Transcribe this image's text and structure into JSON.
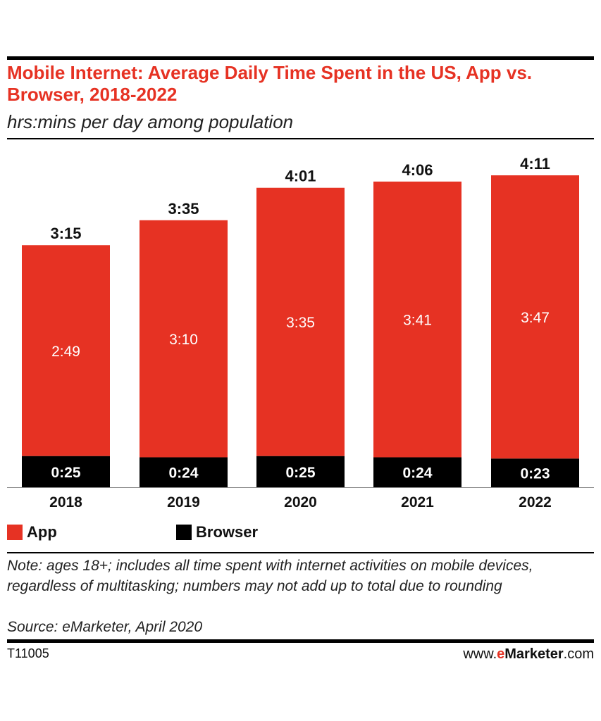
{
  "header": {
    "title": "Mobile Internet: Average Daily Time Spent in the US, App vs. Browser, 2018-2022",
    "subtitle": "hrs:mins per day among population"
  },
  "colors": {
    "app": "#e63223",
    "browser": "#000000",
    "title": "#e63223"
  },
  "legend": {
    "app_label": "App",
    "browser_label": "Browser"
  },
  "chart_data": {
    "type": "bar",
    "stacked": true,
    "categories": [
      "2018",
      "2019",
      "2020",
      "2021",
      "2022"
    ],
    "series": [
      {
        "name": "Browser",
        "values": [
          25,
          24,
          25,
          24,
          23
        ],
        "labels": [
          "0:25",
          "0:24",
          "0:25",
          "0:24",
          "0:23"
        ]
      },
      {
        "name": "App",
        "values": [
          169,
          190,
          215,
          221,
          227
        ],
        "labels": [
          "2:49",
          "3:10",
          "3:35",
          "3:41",
          "3:47"
        ]
      }
    ],
    "totals": [
      195,
      215,
      241,
      246,
      251
    ],
    "total_labels": [
      "3:15",
      "3:35",
      "4:01",
      "4:06",
      "4:11"
    ],
    "unit": "minutes per day",
    "title": "Mobile Internet: Average Daily Time Spent in the US, App vs. Browser, 2018-2022",
    "subtitle": "hrs:mins per day among population",
    "legend_position": "bottom-left",
    "grid": false
  },
  "footer": {
    "note": "Note: ages 18+; includes all time spent with internet activities on mobile devices, regardless of multitasking; numbers may not add up to total due to rounding",
    "source": "Source: eMarketer, April 2020",
    "code": "T11005",
    "site_prefix": "www.",
    "site_e": "e",
    "site_brand": "Marketer",
    "site_suffix": ".com"
  }
}
